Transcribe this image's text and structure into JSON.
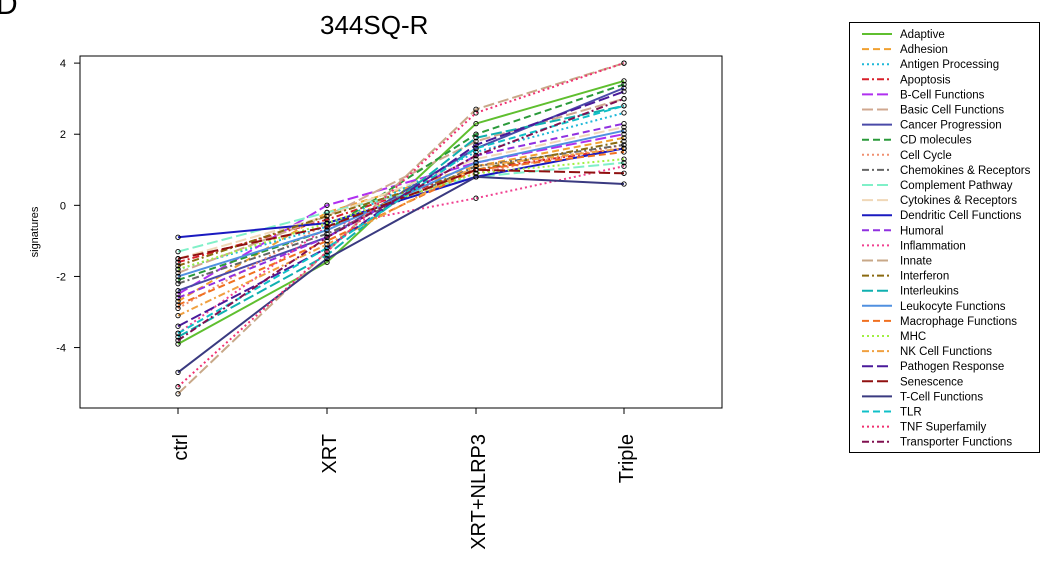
{
  "figure": {
    "panel_letter": "D",
    "title": "344SQ-R"
  },
  "chart_data": {
    "type": "line",
    "title": "344SQ-R",
    "xlabel": "",
    "ylabel": "signatures",
    "categories": [
      "ctrl",
      "XRT",
      "XRT+NLRP3",
      "Triple"
    ],
    "ylim": [
      -5.7,
      4.2
    ],
    "yticks": [
      -4,
      -2,
      0,
      2,
      4
    ],
    "grid": false,
    "legend_position": "right",
    "series": [
      {
        "name": "Adaptive",
        "color": "#5fbf2f",
        "dash": "solid",
        "values": [
          -3.9,
          -1.6,
          2.3,
          3.5
        ]
      },
      {
        "name": "Adhesion",
        "color": "#f0a030",
        "dash": "dashed",
        "values": [
          -2.7,
          -0.2,
          1.1,
          1.9
        ]
      },
      {
        "name": "Antigen Processing",
        "color": "#1fb8d8",
        "dash": "dotted",
        "values": [
          -1.8,
          -0.6,
          1.5,
          2.6
        ]
      },
      {
        "name": "Apoptosis",
        "color": "#d8202a",
        "dash": "dashdot",
        "values": [
          -1.6,
          -0.4,
          1.0,
          1.6
        ]
      },
      {
        "name": "B-Cell Functions",
        "color": "#b030f0",
        "dash": "longdash",
        "values": [
          -2.5,
          0.0,
          1.2,
          2.0
        ]
      },
      {
        "name": "Basic Cell Functions",
        "color": "#d0a890",
        "dash": "longdash",
        "values": [
          -1.9,
          -0.3,
          1.8,
          3.0
        ]
      },
      {
        "name": "Cancer Progression",
        "color": "#4a4aa8",
        "dash": "solid",
        "values": [
          -2.4,
          -0.9,
          1.6,
          3.3
        ]
      },
      {
        "name": "CD molecules",
        "color": "#2a9a3a",
        "dash": "dashed",
        "values": [
          -2.1,
          -0.7,
          2.0,
          3.4
        ]
      },
      {
        "name": "Cell Cycle",
        "color": "#f09070",
        "dash": "dotted",
        "values": [
          -2.9,
          -0.5,
          0.9,
          1.7
        ]
      },
      {
        "name": "Chemokines & Receptors",
        "color": "#666666",
        "dash": "dashdot",
        "values": [
          -2.2,
          -0.8,
          1.1,
          1.7
        ]
      },
      {
        "name": "Complement Pathway",
        "color": "#80f0c8",
        "dash": "longdash",
        "values": [
          -1.3,
          -0.2,
          0.8,
          1.2
        ]
      },
      {
        "name": "Cytokines & Receptors",
        "color": "#f0d8b8",
        "dash": "longdash",
        "values": [
          -1.5,
          -0.3,
          1.3,
          2.2
        ]
      },
      {
        "name": "Dendritic Cell Functions",
        "color": "#1a1ac0",
        "dash": "solid",
        "values": [
          -0.9,
          -0.5,
          0.8,
          1.6
        ]
      },
      {
        "name": "Humoral",
        "color": "#9030e0",
        "dash": "dashed",
        "values": [
          -2.6,
          -0.9,
          1.4,
          2.3
        ]
      },
      {
        "name": "Inflammation",
        "color": "#f04090",
        "dash": "dotted",
        "values": [
          -3.6,
          -0.6,
          0.2,
          1.1
        ]
      },
      {
        "name": "Innate",
        "color": "#c8a888",
        "dash": "longdash",
        "values": [
          -5.3,
          -1.3,
          2.7,
          4.0
        ]
      },
      {
        "name": "Interferon",
        "color": "#8a6a10",
        "dash": "dashdot",
        "values": [
          -1.7,
          -0.3,
          1.0,
          1.8
        ]
      },
      {
        "name": "Interleukins",
        "color": "#10b0b0",
        "dash": "longdash",
        "values": [
          -3.7,
          -1.4,
          1.9,
          2.8
        ]
      },
      {
        "name": "Leukocyte Functions",
        "color": "#5090e0",
        "dash": "solid",
        "values": [
          -2.0,
          -0.7,
          1.2,
          2.1
        ]
      },
      {
        "name": "Macrophage Functions",
        "color": "#f07020",
        "dash": "dashed",
        "values": [
          -2.8,
          -1.0,
          1.0,
          1.5
        ]
      },
      {
        "name": "MHC",
        "color": "#a0f040",
        "dash": "dotted",
        "values": [
          -1.8,
          -0.5,
          0.9,
          1.3
        ]
      },
      {
        "name": "NK Cell Functions",
        "color": "#f0a040",
        "dash": "dashdot",
        "values": [
          -3.1,
          -1.1,
          1.1,
          1.6
        ]
      },
      {
        "name": "Pathogen Response",
        "color": "#4a1a9a",
        "dash": "longdash",
        "values": [
          -3.4,
          -1.2,
          1.7,
          3.2
        ]
      },
      {
        "name": "Senescence",
        "color": "#901010",
        "dash": "longdash",
        "values": [
          -1.5,
          -0.6,
          1.0,
          0.9
        ]
      },
      {
        "name": "T-Cell Functions",
        "color": "#3a3a80",
        "dash": "solid",
        "values": [
          -4.7,
          -1.5,
          0.8,
          0.6
        ]
      },
      {
        "name": "TLR",
        "color": "#10c0c8",
        "dash": "dashed",
        "values": [
          -3.6,
          -1.2,
          1.6,
          2.8
        ]
      },
      {
        "name": "TNF Superfamily",
        "color": "#f03070",
        "dash": "dotted",
        "values": [
          -5.1,
          -1.3,
          2.6,
          4.0
        ]
      },
      {
        "name": "Transporter Functions",
        "color": "#801050",
        "dash": "dashdot",
        "values": [
          -3.8,
          -0.9,
          1.4,
          3.0
        ]
      }
    ]
  }
}
